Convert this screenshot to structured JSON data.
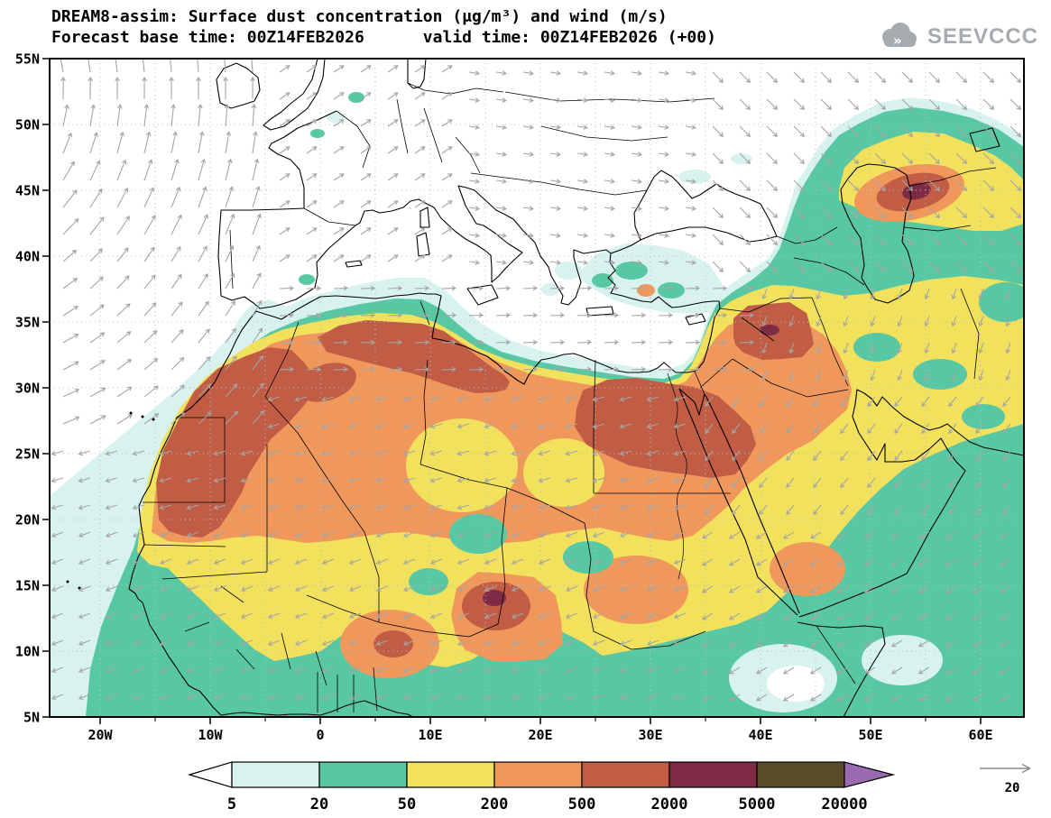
{
  "header": {
    "title": "DREAM8-assim: Surface dust concentration (μg/m³) and wind (m/s)",
    "subtitle": "Forecast base time: 00Z14FEB2026      valid time: 00Z14FEB2026 (+00)",
    "logo_text": "SEEVCCC",
    "logo_glyph": "»"
  },
  "axes": {
    "lat": [
      {
        "v": 55,
        "label": "55N"
      },
      {
        "v": 50,
        "label": "50N"
      },
      {
        "v": 45,
        "label": "45N"
      },
      {
        "v": 40,
        "label": "40N"
      },
      {
        "v": 35,
        "label": "35N"
      },
      {
        "v": 30,
        "label": "30N"
      },
      {
        "v": 25,
        "label": "25N"
      },
      {
        "v": 20,
        "label": "20N"
      },
      {
        "v": 15,
        "label": "15N"
      },
      {
        "v": 10,
        "label": "10N"
      },
      {
        "v": 5,
        "label": "5N"
      }
    ],
    "lon": [
      {
        "v": -20,
        "label": "20W"
      },
      {
        "v": -10,
        "label": "10W"
      },
      {
        "v": 0,
        "label": "0"
      },
      {
        "v": 10,
        "label": "10E"
      },
      {
        "v": 20,
        "label": "20E"
      },
      {
        "v": 30,
        "label": "30E"
      },
      {
        "v": 40,
        "label": "40E"
      },
      {
        "v": 50,
        "label": "50E"
      },
      {
        "v": 60,
        "label": "60E"
      }
    ]
  },
  "legend": {
    "tick_labels": [
      "5",
      "20",
      "50",
      "200",
      "500",
      "2000",
      "5000",
      "20000"
    ],
    "colors": [
      "#ffffff",
      "#d8f3ee",
      "#58c7a4",
      "#f2e15c",
      "#f0985b",
      "#c15c45",
      "#7e2b45",
      "#5a4b28",
      "#9a6bb0"
    ]
  },
  "wind_ref": {
    "label": "20"
  },
  "palette": {
    "wind_arrow": "#a5a5a5",
    "grid": "#bdbdbd",
    "coast": "#000000",
    "logo_gray": "#a6abb0"
  },
  "chart_data": {
    "type": "heatmap",
    "title": "DREAM8-assim: Surface dust concentration (μg/m³) and wind (m/s)",
    "model": "DREAM8-assim",
    "variable": "Surface dust concentration",
    "variable_units": "μg/m³",
    "overlay": "wind vectors",
    "overlay_units": "m/s",
    "forecast_base_time": "00Z14FEB2026",
    "valid_time": "00Z14FEB2026",
    "lead": "+00",
    "lat_range": [
      5,
      55
    ],
    "lon_range": [
      -24.6,
      64
    ],
    "lat_ticks": [
      5,
      10,
      15,
      20,
      25,
      30,
      35,
      40,
      45,
      50,
      55
    ],
    "lon_ticks_major": [
      -20,
      -10,
      0,
      10,
      20,
      30,
      40,
      50,
      60
    ],
    "lon_ticks_minor": [
      -15,
      -5,
      5,
      15,
      25,
      35,
      45,
      55
    ],
    "contour_levels_ugm3": [
      5,
      20,
      50,
      200,
      500,
      2000,
      5000,
      20000
    ],
    "level_colors": [
      "#ffffff",
      "#d8f3ee",
      "#58c7a4",
      "#f2e15c",
      "#f0985b",
      "#c15c45",
      "#7e2b45",
      "#5a4b28",
      "#9a6bb0"
    ],
    "wind_reference_ms": 20,
    "grid": true,
    "legend_position": "bottom",
    "high_dust_regions_gt500": [
      "NW Africa (Morocco/Mauritania)",
      "N Algeria-Libya coast",
      "Egypt/Levant/NW Arabia",
      "Iraq/Syria",
      "Chad (Bodele)",
      "Caucasus/Turkmenistan"
    ]
  }
}
